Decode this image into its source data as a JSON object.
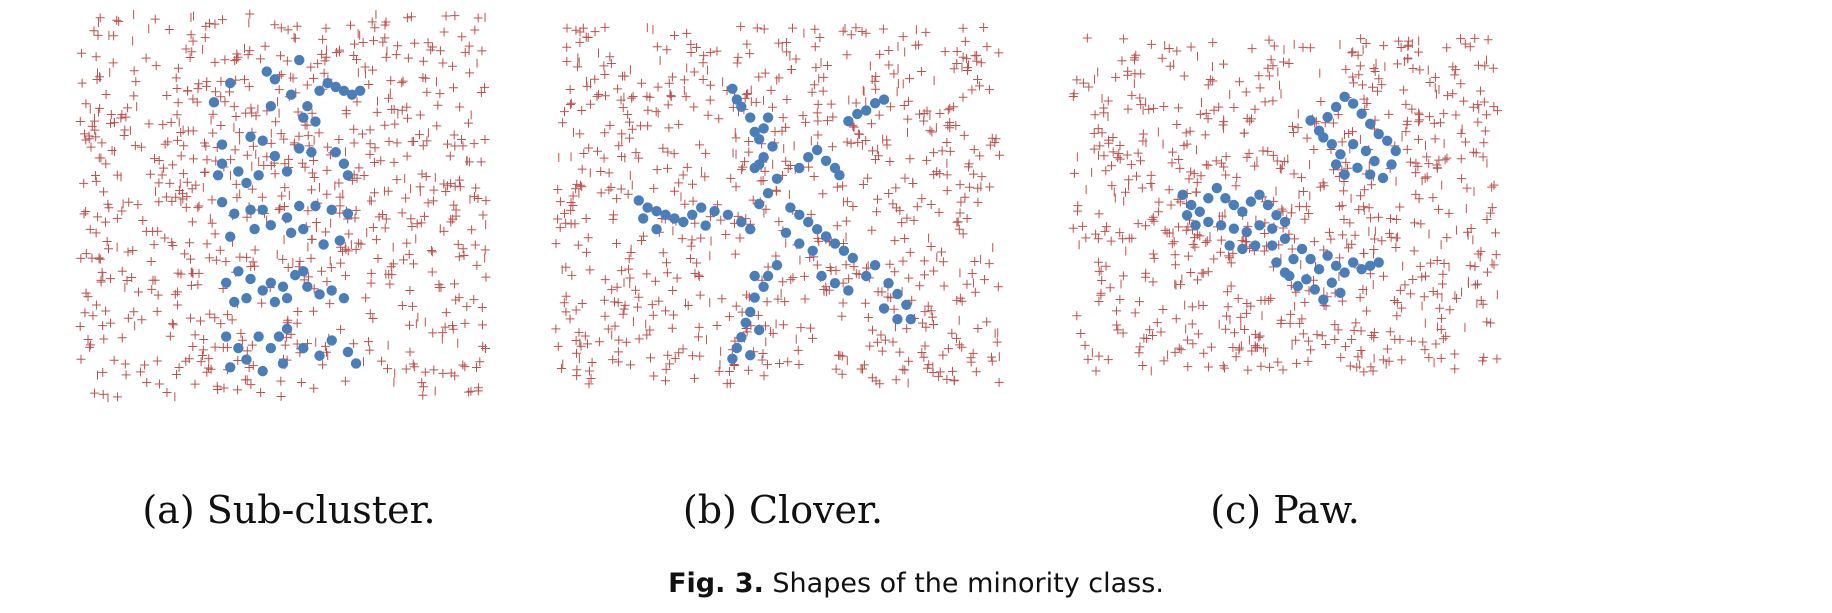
{
  "figure": {
    "caption_label": "Fig. 3.",
    "caption_text": " Shapes of the minority class."
  },
  "colors": {
    "majority": "#c0504d",
    "minority": "#4a7ebb"
  },
  "chart_data": [
    {
      "type": "scatter",
      "title": "(a) Sub-cluster.",
      "xlim": [
        0,
        1
      ],
      "ylim": [
        0,
        1
      ],
      "grid": false,
      "legend": "none",
      "majority_count": 780,
      "majority_seed": 11,
      "minority_points": [
        [
          0.37,
          0.82
        ],
        [
          0.46,
          0.85
        ],
        [
          0.54,
          0.88
        ],
        [
          0.48,
          0.83
        ],
        [
          0.52,
          0.79
        ],
        [
          0.56,
          0.76
        ],
        [
          0.59,
          0.8
        ],
        [
          0.61,
          0.82
        ],
        [
          0.63,
          0.81
        ],
        [
          0.65,
          0.8
        ],
        [
          0.67,
          0.79
        ],
        [
          0.69,
          0.8
        ],
        [
          0.33,
          0.77
        ],
        [
          0.47,
          0.76
        ],
        [
          0.55,
          0.73
        ],
        [
          0.58,
          0.72
        ],
        [
          0.35,
          0.66
        ],
        [
          0.42,
          0.68
        ],
        [
          0.45,
          0.67
        ],
        [
          0.48,
          0.63
        ],
        [
          0.44,
          0.58
        ],
        [
          0.39,
          0.59
        ],
        [
          0.35,
          0.61
        ],
        [
          0.34,
          0.58
        ],
        [
          0.51,
          0.59
        ],
        [
          0.54,
          0.65
        ],
        [
          0.57,
          0.64
        ],
        [
          0.63,
          0.64
        ],
        [
          0.65,
          0.61
        ],
        [
          0.66,
          0.58
        ],
        [
          0.41,
          0.56
        ],
        [
          0.35,
          0.51
        ],
        [
          0.38,
          0.48
        ],
        [
          0.42,
          0.49
        ],
        [
          0.45,
          0.49
        ],
        [
          0.47,
          0.45
        ],
        [
          0.51,
          0.47
        ],
        [
          0.54,
          0.5
        ],
        [
          0.58,
          0.5
        ],
        [
          0.62,
          0.49
        ],
        [
          0.66,
          0.48
        ],
        [
          0.43,
          0.44
        ],
        [
          0.37,
          0.42
        ],
        [
          0.52,
          0.43
        ],
        [
          0.55,
          0.44
        ],
        [
          0.6,
          0.4
        ],
        [
          0.64,
          0.41
        ],
        [
          0.36,
          0.3
        ],
        [
          0.39,
          0.33
        ],
        [
          0.42,
          0.31
        ],
        [
          0.45,
          0.28
        ],
        [
          0.47,
          0.3
        ],
        [
          0.5,
          0.29
        ],
        [
          0.53,
          0.32
        ],
        [
          0.55,
          0.33
        ],
        [
          0.56,
          0.29
        ],
        [
          0.59,
          0.27
        ],
        [
          0.62,
          0.28
        ],
        [
          0.65,
          0.26
        ],
        [
          0.38,
          0.25
        ],
        [
          0.41,
          0.26
        ],
        [
          0.48,
          0.25
        ],
        [
          0.51,
          0.26
        ],
        [
          0.36,
          0.16
        ],
        [
          0.39,
          0.13
        ],
        [
          0.41,
          0.1
        ],
        [
          0.44,
          0.16
        ],
        [
          0.47,
          0.13
        ],
        [
          0.49,
          0.16
        ],
        [
          0.51,
          0.18
        ],
        [
          0.55,
          0.13
        ],
        [
          0.59,
          0.11
        ],
        [
          0.62,
          0.15
        ],
        [
          0.66,
          0.12
        ],
        [
          0.68,
          0.09
        ],
        [
          0.37,
          0.08
        ],
        [
          0.45,
          0.07
        ],
        [
          0.5,
          0.09
        ]
      ]
    },
    {
      "type": "scatter",
      "title": "(b) Clover.",
      "xlim": [
        0,
        1
      ],
      "ylim": [
        0,
        1
      ],
      "grid": false,
      "legend": "none",
      "majority_count": 760,
      "majority_seed": 23,
      "minority_points": [
        [
          0.4,
          0.82
        ],
        [
          0.41,
          0.79
        ],
        [
          0.42,
          0.77
        ],
        [
          0.44,
          0.74
        ],
        [
          0.45,
          0.7
        ],
        [
          0.46,
          0.68
        ],
        [
          0.47,
          0.71
        ],
        [
          0.48,
          0.74
        ],
        [
          0.49,
          0.66
        ],
        [
          0.47,
          0.63
        ],
        [
          0.46,
          0.61
        ],
        [
          0.45,
          0.6
        ],
        [
          0.5,
          0.57
        ],
        [
          0.48,
          0.53
        ],
        [
          0.46,
          0.5
        ],
        [
          0.55,
          0.6
        ],
        [
          0.57,
          0.63
        ],
        [
          0.59,
          0.65
        ],
        [
          0.61,
          0.62
        ],
        [
          0.63,
          0.6
        ],
        [
          0.64,
          0.58
        ],
        [
          0.66,
          0.73
        ],
        [
          0.68,
          0.75
        ],
        [
          0.7,
          0.76
        ],
        [
          0.72,
          0.78
        ],
        [
          0.74,
          0.79
        ],
        [
          0.19,
          0.51
        ],
        [
          0.21,
          0.49
        ],
        [
          0.23,
          0.48
        ],
        [
          0.25,
          0.47
        ],
        [
          0.27,
          0.46
        ],
        [
          0.29,
          0.45
        ],
        [
          0.31,
          0.47
        ],
        [
          0.33,
          0.49
        ],
        [
          0.36,
          0.48
        ],
        [
          0.39,
          0.47
        ],
        [
          0.42,
          0.45
        ],
        [
          0.44,
          0.43
        ],
        [
          0.2,
          0.46
        ],
        [
          0.23,
          0.43
        ],
        [
          0.34,
          0.44
        ],
        [
          0.53,
          0.49
        ],
        [
          0.55,
          0.47
        ],
        [
          0.57,
          0.45
        ],
        [
          0.59,
          0.43
        ],
        [
          0.61,
          0.41
        ],
        [
          0.63,
          0.39
        ],
        [
          0.65,
          0.37
        ],
        [
          0.67,
          0.35
        ],
        [
          0.52,
          0.42
        ],
        [
          0.55,
          0.39
        ],
        [
          0.58,
          0.37
        ],
        [
          0.5,
          0.33
        ],
        [
          0.48,
          0.3
        ],
        [
          0.47,
          0.27
        ],
        [
          0.45,
          0.24
        ],
        [
          0.44,
          0.2
        ],
        [
          0.43,
          0.17
        ],
        [
          0.42,
          0.13
        ],
        [
          0.41,
          0.1
        ],
        [
          0.44,
          0.08
        ],
        [
          0.4,
          0.07
        ],
        [
          0.46,
          0.15
        ],
        [
          0.45,
          0.3
        ],
        [
          0.6,
          0.3
        ],
        [
          0.63,
          0.28
        ],
        [
          0.66,
          0.26
        ],
        [
          0.7,
          0.3
        ],
        [
          0.72,
          0.33
        ],
        [
          0.75,
          0.28
        ],
        [
          0.77,
          0.25
        ],
        [
          0.79,
          0.22
        ],
        [
          0.74,
          0.21
        ],
        [
          0.77,
          0.18
        ],
        [
          0.8,
          0.18
        ]
      ]
    },
    {
      "type": "scatter",
      "title": "(c) Paw.",
      "xlim": [
        0,
        1
      ],
      "ylim": [
        0,
        1
      ],
      "grid": false,
      "legend": "none",
      "majority_count": 760,
      "majority_seed": 37,
      "minority_points": [
        [
          0.56,
          0.75
        ],
        [
          0.58,
          0.72
        ],
        [
          0.6,
          0.76
        ],
        [
          0.62,
          0.79
        ],
        [
          0.64,
          0.82
        ],
        [
          0.66,
          0.8
        ],
        [
          0.68,
          0.77
        ],
        [
          0.7,
          0.74
        ],
        [
          0.72,
          0.71
        ],
        [
          0.61,
          0.68
        ],
        [
          0.63,
          0.65
        ],
        [
          0.66,
          0.68
        ],
        [
          0.69,
          0.66
        ],
        [
          0.71,
          0.63
        ],
        [
          0.74,
          0.69
        ],
        [
          0.75,
          0.62
        ],
        [
          0.73,
          0.58
        ],
        [
          0.7,
          0.59
        ],
        [
          0.67,
          0.61
        ],
        [
          0.64,
          0.59
        ],
        [
          0.62,
          0.62
        ],
        [
          0.59,
          0.7
        ],
        [
          0.76,
          0.66
        ],
        [
          0.26,
          0.53
        ],
        [
          0.28,
          0.5
        ],
        [
          0.3,
          0.48
        ],
        [
          0.32,
          0.52
        ],
        [
          0.34,
          0.55
        ],
        [
          0.36,
          0.52
        ],
        [
          0.38,
          0.5
        ],
        [
          0.4,
          0.48
        ],
        [
          0.42,
          0.51
        ],
        [
          0.44,
          0.53
        ],
        [
          0.46,
          0.5
        ],
        [
          0.48,
          0.47
        ],
        [
          0.5,
          0.45
        ],
        [
          0.47,
          0.43
        ],
        [
          0.44,
          0.44
        ],
        [
          0.41,
          0.42
        ],
        [
          0.38,
          0.43
        ],
        [
          0.35,
          0.44
        ],
        [
          0.32,
          0.45
        ],
        [
          0.29,
          0.44
        ],
        [
          0.27,
          0.47
        ],
        [
          0.37,
          0.38
        ],
        [
          0.4,
          0.37
        ],
        [
          0.43,
          0.38
        ],
        [
          0.47,
          0.38
        ],
        [
          0.5,
          0.4
        ],
        [
          0.48,
          0.33
        ],
        [
          0.5,
          0.3
        ],
        [
          0.52,
          0.34
        ],
        [
          0.54,
          0.37
        ],
        [
          0.56,
          0.34
        ],
        [
          0.58,
          0.31
        ],
        [
          0.6,
          0.35
        ],
        [
          0.62,
          0.32
        ],
        [
          0.64,
          0.3
        ],
        [
          0.66,
          0.33
        ],
        [
          0.68,
          0.31
        ],
        [
          0.7,
          0.32
        ],
        [
          0.72,
          0.33
        ],
        [
          0.55,
          0.28
        ],
        [
          0.57,
          0.25
        ],
        [
          0.59,
          0.22
        ],
        [
          0.61,
          0.27
        ],
        [
          0.63,
          0.24
        ],
        [
          0.53,
          0.26
        ],
        [
          0.51,
          0.29
        ]
      ]
    }
  ]
}
